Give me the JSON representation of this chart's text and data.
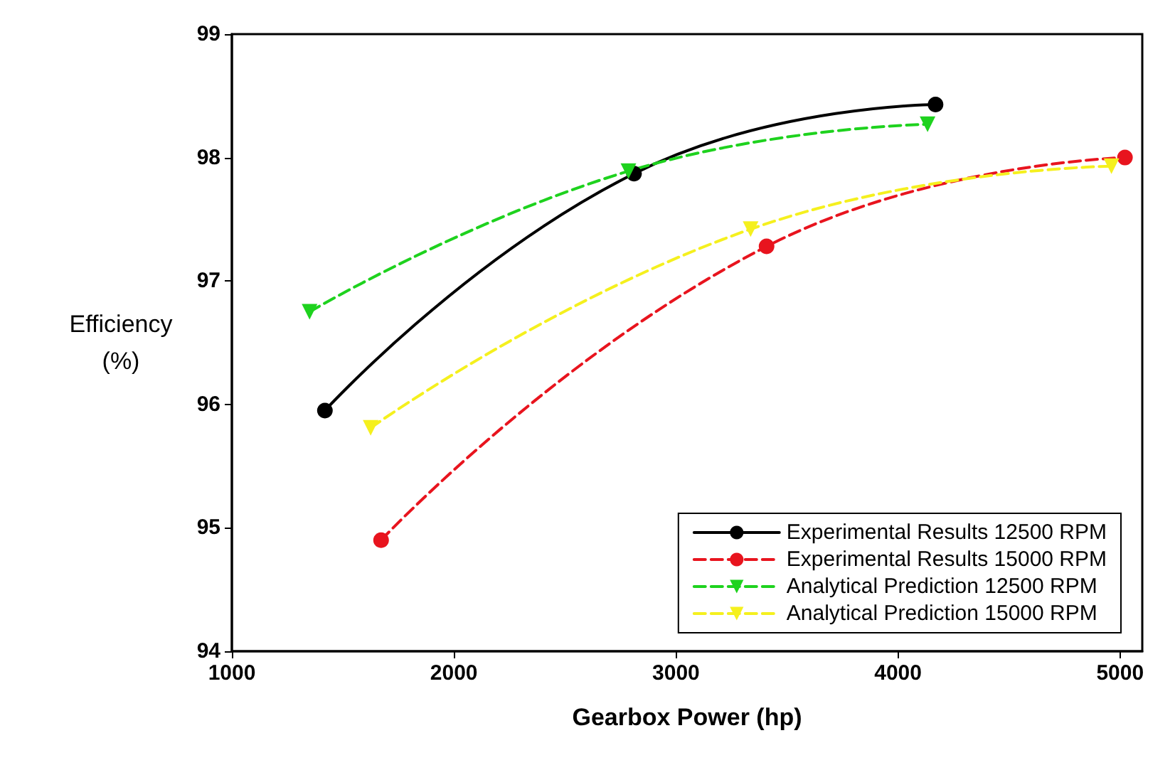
{
  "chart_data": {
    "type": "line",
    "xlabel": "Gearbox Power (hp)",
    "ylabel": "Efficiency\n(%)",
    "xlim": [
      1000,
      5100
    ],
    "xticks": [
      1000,
      2000,
      3000,
      4000,
      5000
    ],
    "ylim": [
      94,
      99
    ],
    "yticks": [
      94,
      95,
      96,
      97,
      98,
      99
    ],
    "grid": false,
    "legend": "bottom right",
    "series": [
      {
        "name": "Experimental Results 12500 RPM",
        "color": "#000000",
        "marker": "circle",
        "line_style": "solid",
        "x": [
          1419,
          2811,
          4169
        ],
        "values": [
          95.95,
          97.87,
          98.43
        ]
      },
      {
        "name": "Experimental Results 15000 RPM",
        "color": "#e8141e",
        "marker": "circle",
        "line_style": "dashed",
        "x": [
          1672,
          3408,
          5022
        ],
        "values": [
          94.9,
          97.28,
          98.0
        ]
      },
      {
        "name": "Analytical Prediction 12500 RPM",
        "color": "#1ed21e",
        "marker": "triangle",
        "line_style": "dashed",
        "x": [
          1350,
          2786,
          4133
        ],
        "values": [
          96.75,
          97.89,
          98.27
        ]
      },
      {
        "name": "Analytical Prediction 15000 RPM",
        "color": "#f5f01e",
        "marker": "triangle",
        "line_style": "dashed",
        "x": [
          1625,
          3336,
          4961
        ],
        "values": [
          95.81,
          97.42,
          97.93
        ]
      }
    ]
  }
}
